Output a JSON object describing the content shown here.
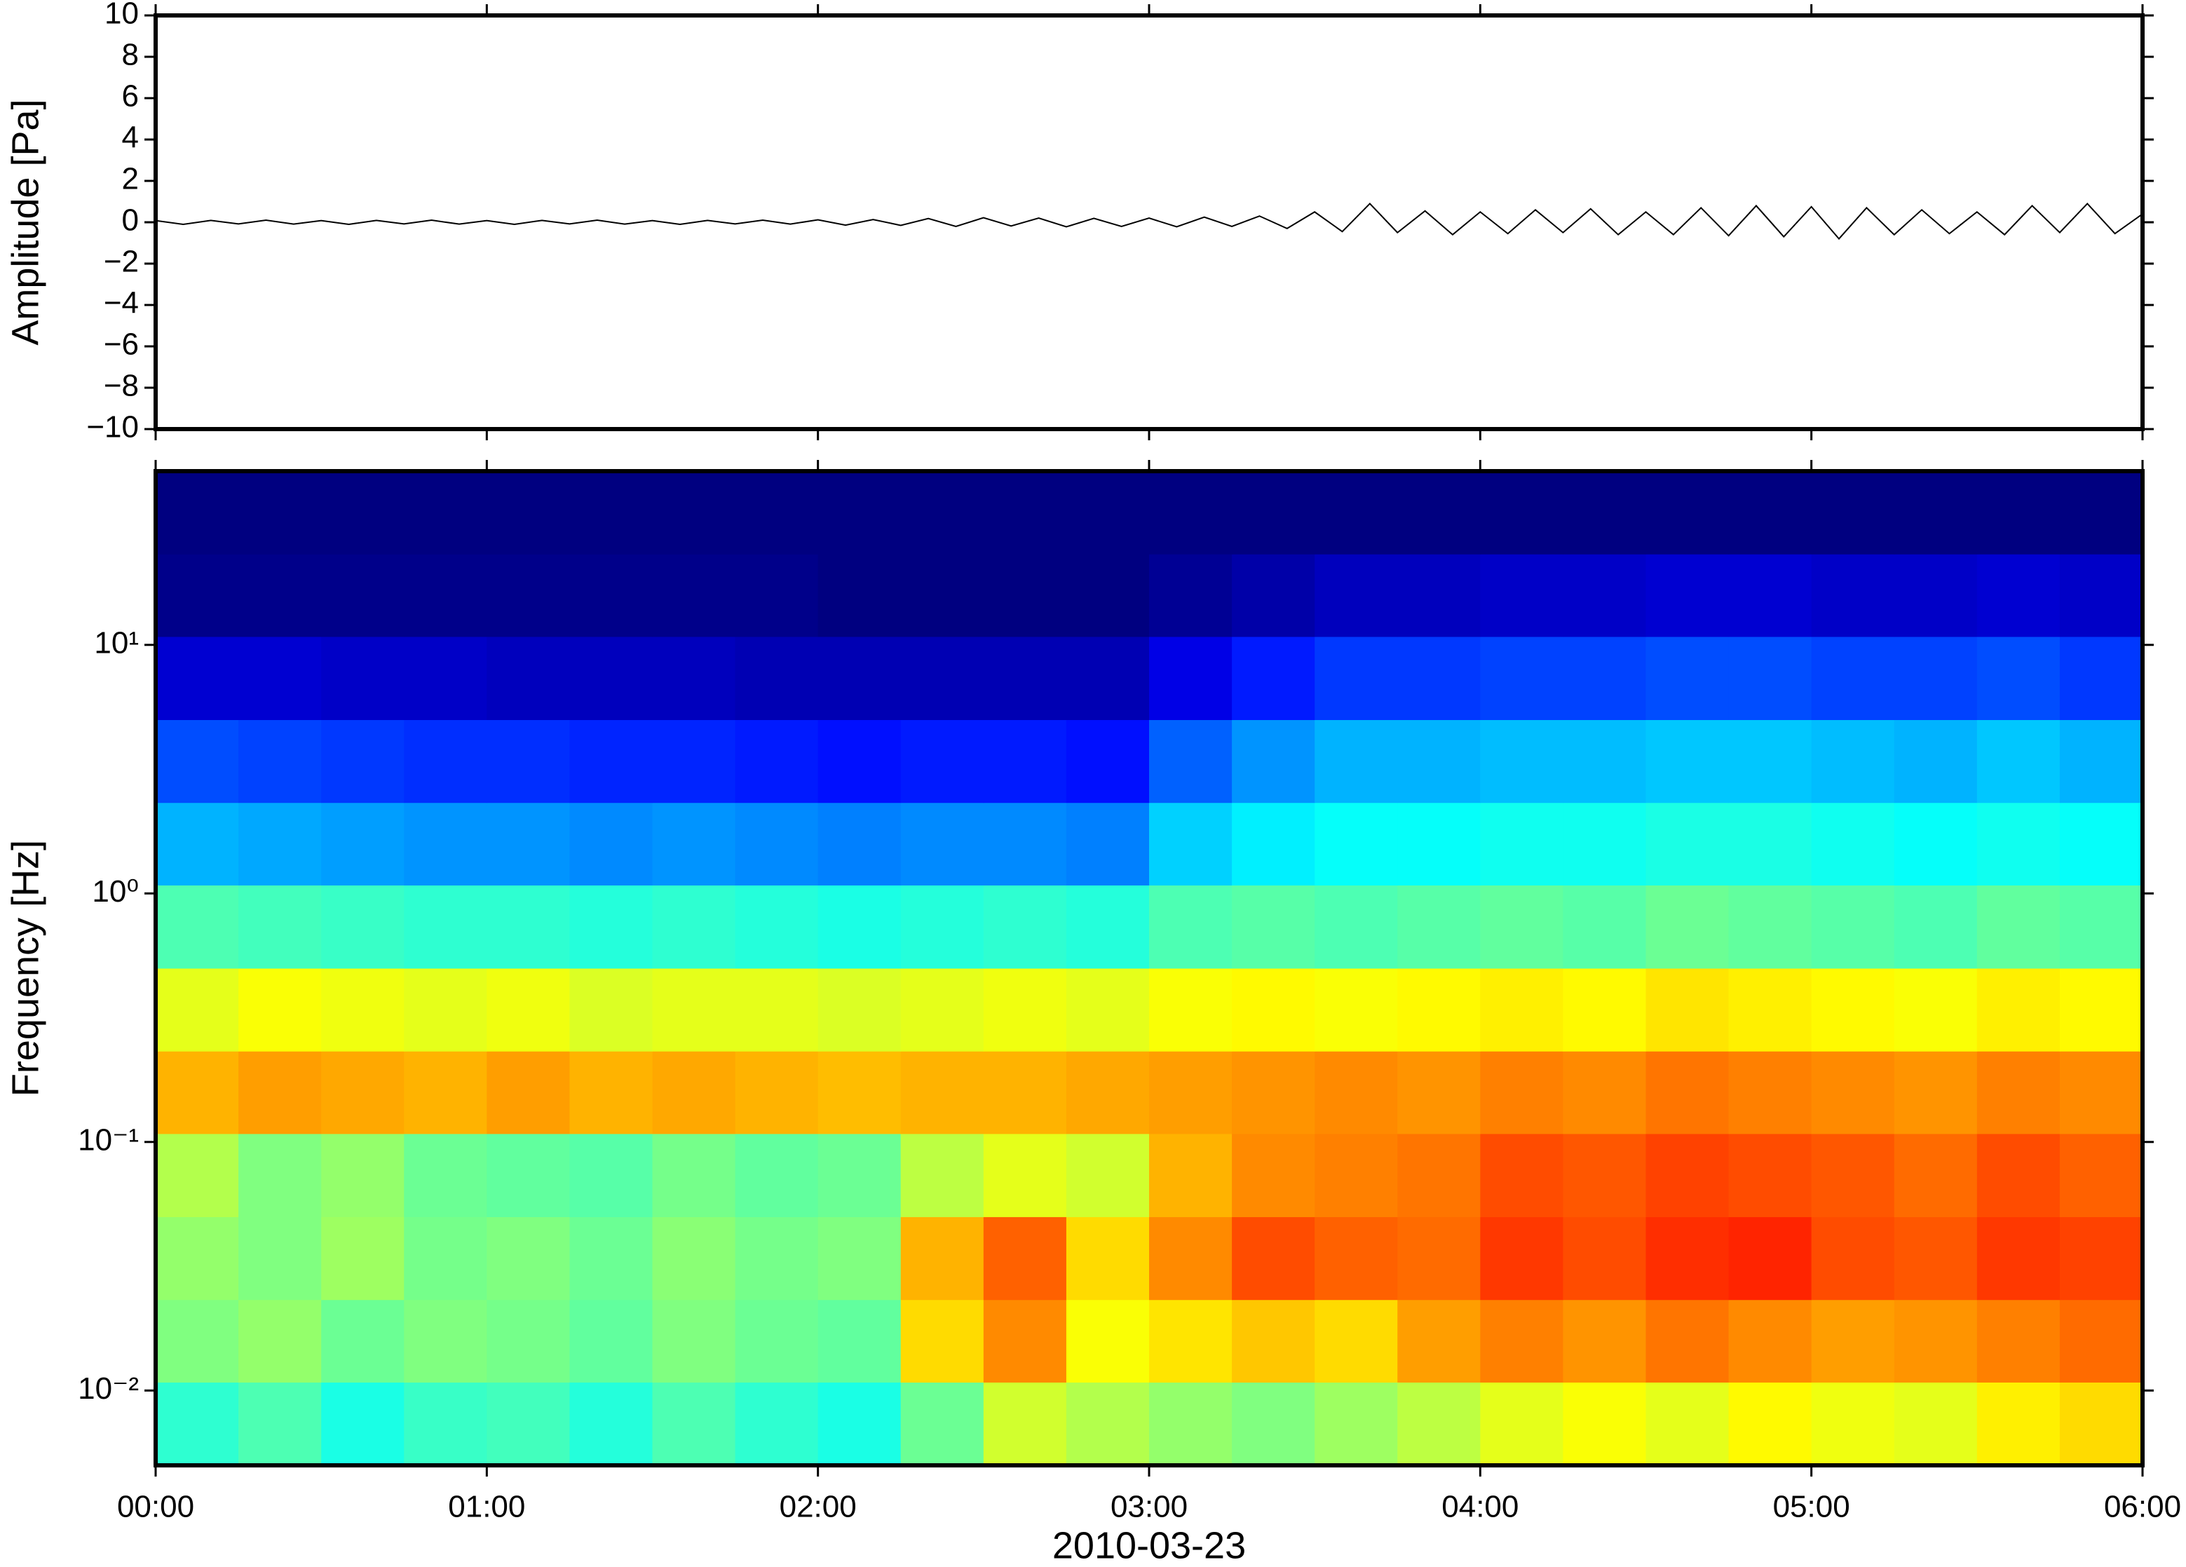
{
  "chart_data": [
    {
      "type": "line",
      "ylabel": "Amplitude [Pa]",
      "color": "#000000",
      "xlim": [
        0,
        360
      ],
      "xticks": [
        0,
        60,
        120,
        180,
        240,
        300,
        360
      ],
      "ylim": [
        -10,
        10
      ],
      "yticks": [
        {
          "value": -10,
          "label": "−10"
        },
        {
          "value": -8,
          "label": "−8"
        },
        {
          "value": -6,
          "label": "−6"
        },
        {
          "value": -4,
          "label": "−4"
        },
        {
          "value": -2,
          "label": "−2"
        },
        0,
        2,
        4,
        6,
        8,
        10
      ],
      "x": [
        0,
        5,
        10,
        15,
        20,
        25,
        30,
        35,
        40,
        45,
        50,
        55,
        60,
        65,
        70,
        75,
        80,
        85,
        90,
        95,
        100,
        105,
        110,
        115,
        120,
        125,
        130,
        135,
        140,
        145,
        150,
        155,
        160,
        165,
        170,
        175,
        180,
        185,
        190,
        195,
        200,
        205,
        210,
        215,
        220,
        225,
        230,
        235,
        240,
        245,
        250,
        255,
        260,
        265,
        270,
        275,
        280,
        285,
        290,
        295,
        300,
        305,
        310,
        315,
        320,
        325,
        330,
        335,
        340,
        345,
        350,
        355,
        360
      ],
      "values": [
        0.08,
        -0.1,
        0.09,
        -0.08,
        0.1,
        -0.09,
        0.08,
        -0.1,
        0.09,
        -0.08,
        0.1,
        -0.09,
        0.08,
        -0.1,
        0.09,
        -0.08,
        0.1,
        -0.09,
        0.08,
        -0.1,
        0.09,
        -0.08,
        0.1,
        -0.09,
        0.12,
        -0.14,
        0.13,
        -0.15,
        0.18,
        -0.2,
        0.22,
        -0.18,
        0.2,
        -0.22,
        0.19,
        -0.2,
        0.2,
        -0.22,
        0.25,
        -0.2,
        0.3,
        -0.3,
        0.5,
        -0.45,
        0.9,
        -0.5,
        0.55,
        -0.6,
        0.5,
        -0.55,
        0.6,
        -0.5,
        0.65,
        -0.6,
        0.5,
        -0.6,
        0.7,
        -0.65,
        0.8,
        -0.7,
        0.75,
        -0.8,
        0.7,
        -0.6,
        0.6,
        -0.55,
        0.5,
        -0.6,
        0.8,
        -0.5,
        0.9,
        -0.55,
        0.4
      ]
    },
    {
      "type": "heatmap",
      "ylabel": "Frequency [Hz]",
      "xlabel": "2010-03-23",
      "log_y": true,
      "xlim": [
        0,
        360
      ],
      "xticks": [
        {
          "value": 0,
          "label": "00:00"
        },
        {
          "value": 60,
          "label": "01:00"
        },
        {
          "value": 120,
          "label": "02:00"
        },
        {
          "value": 180,
          "label": "03:00"
        },
        {
          "value": 240,
          "label": "04:00"
        },
        {
          "value": 300,
          "label": "05:00"
        },
        {
          "value": 360,
          "label": "06:00"
        }
      ],
      "ylim": [
        0.005,
        50
      ],
      "yticks": [
        {
          "value": 0.01,
          "label": "10⁻²"
        },
        {
          "value": 0.1,
          "label": "10⁻¹"
        },
        {
          "value": 1,
          "label": "10⁰"
        },
        {
          "value": 10,
          "label": "10¹"
        }
      ],
      "x_edges": [
        0,
        15,
        30,
        45,
        60,
        75,
        90,
        105,
        120,
        135,
        150,
        165,
        180,
        195,
        210,
        225,
        240,
        255,
        270,
        285,
        300,
        315,
        330,
        345,
        360
      ],
      "y_edges": [
        0.005,
        0.0108,
        0.0232,
        0.05,
        0.108,
        0.232,
        0.5,
        1.08,
        2.32,
        5,
        10.8,
        23.2,
        50
      ],
      "z": [
        [
          0.42,
          0.45,
          0.4,
          0.43,
          0.44,
          0.41,
          0.45,
          0.42,
          0.4,
          0.48,
          0.58,
          0.55,
          0.52,
          0.5,
          0.53,
          0.56,
          0.6,
          0.62,
          0.6,
          0.63,
          0.61,
          0.6,
          0.64,
          0.66
        ],
        [
          0.5,
          0.52,
          0.48,
          0.5,
          0.49,
          0.47,
          0.5,
          0.48,
          0.47,
          0.66,
          0.74,
          0.62,
          0.65,
          0.68,
          0.66,
          0.72,
          0.75,
          0.73,
          0.76,
          0.74,
          0.72,
          0.73,
          0.75,
          0.77
        ],
        [
          0.52,
          0.5,
          0.53,
          0.49,
          0.5,
          0.48,
          0.51,
          0.49,
          0.5,
          0.7,
          0.78,
          0.66,
          0.74,
          0.8,
          0.78,
          0.77,
          0.82,
          0.8,
          0.83,
          0.84,
          0.8,
          0.79,
          0.82,
          0.81
        ],
        [
          0.55,
          0.5,
          0.52,
          0.48,
          0.47,
          0.46,
          0.49,
          0.47,
          0.48,
          0.56,
          0.6,
          0.58,
          0.7,
          0.74,
          0.75,
          0.76,
          0.8,
          0.79,
          0.81,
          0.8,
          0.79,
          0.77,
          0.8,
          0.78
        ],
        [
          0.7,
          0.72,
          0.71,
          0.7,
          0.72,
          0.7,
          0.71,
          0.7,
          0.69,
          0.7,
          0.7,
          0.71,
          0.72,
          0.73,
          0.74,
          0.73,
          0.75,
          0.74,
          0.76,
          0.75,
          0.74,
          0.73,
          0.75,
          0.74
        ],
        [
          0.6,
          0.62,
          0.61,
          0.6,
          0.61,
          0.59,
          0.6,
          0.6,
          0.59,
          0.6,
          0.61,
          0.6,
          0.62,
          0.63,
          0.62,
          0.63,
          0.64,
          0.63,
          0.65,
          0.64,
          0.63,
          0.62,
          0.64,
          0.63
        ],
        [
          0.45,
          0.44,
          0.43,
          0.42,
          0.42,
          0.41,
          0.42,
          0.41,
          0.4,
          0.41,
          0.42,
          0.41,
          0.45,
          0.46,
          0.45,
          0.46,
          0.47,
          0.46,
          0.48,
          0.47,
          0.46,
          0.45,
          0.47,
          0.46
        ],
        [
          0.3,
          0.29,
          0.28,
          0.27,
          0.27,
          0.26,
          0.27,
          0.26,
          0.25,
          0.26,
          0.26,
          0.25,
          0.33,
          0.36,
          0.38,
          0.38,
          0.39,
          0.39,
          0.4,
          0.4,
          0.39,
          0.38,
          0.39,
          0.38
        ],
        [
          0.2,
          0.19,
          0.18,
          0.17,
          0.17,
          0.16,
          0.16,
          0.15,
          0.14,
          0.15,
          0.15,
          0.14,
          0.22,
          0.27,
          0.3,
          0.3,
          0.31,
          0.31,
          0.32,
          0.32,
          0.31,
          0.3,
          0.32,
          0.3
        ],
        [
          0.08,
          0.08,
          0.07,
          0.07,
          0.06,
          0.06,
          0.06,
          0.05,
          0.05,
          0.05,
          0.05,
          0.05,
          0.1,
          0.15,
          0.18,
          0.18,
          0.19,
          0.19,
          0.2,
          0.2,
          0.19,
          0.19,
          0.2,
          0.18
        ],
        [
          0.01,
          0.01,
          0.01,
          0.01,
          0.01,
          0.01,
          0.01,
          0.01,
          0,
          0,
          0,
          0,
          0.02,
          0.04,
          0.06,
          0.06,
          0.07,
          0.07,
          0.08,
          0.08,
          0.07,
          0.07,
          0.08,
          0.07
        ],
        [
          0,
          0,
          0,
          0,
          0,
          0,
          0,
          0,
          0,
          0,
          0,
          0,
          0,
          0,
          0,
          0,
          0,
          0,
          0,
          0,
          0,
          0,
          0,
          0
        ]
      ]
    }
  ]
}
